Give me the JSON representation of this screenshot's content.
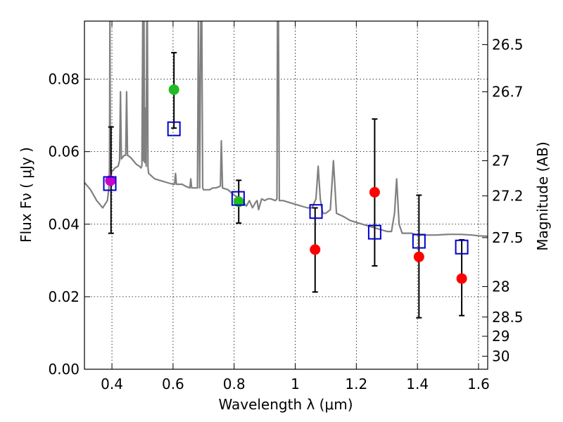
{
  "chart_data": {
    "type": "scatter",
    "xlabel": "Wavelength  λ (μm)",
    "ylabel": "Flux  Fν  ( μJy )",
    "ylabel2": "Magnitude (AB)",
    "xlim": [
      0.31,
      1.63
    ],
    "ylim": [
      0.0,
      0.096
    ],
    "grid": true,
    "xticks": [
      0.4,
      0.6,
      0.8,
      1.0,
      1.2,
      1.4,
      1.6
    ],
    "xtick_labels": [
      "0.4",
      "0.6",
      "0.8",
      "1",
      "1.2",
      "1.4",
      "1.6"
    ],
    "yticks": [
      0.0,
      0.02,
      0.04,
      0.06,
      0.08
    ],
    "ytick_labels": [
      "0.00",
      "0.02",
      "0.04",
      "0.06",
      "0.08"
    ],
    "right_ticks": [
      {
        "label": "26.5",
        "flux": 0.0895
      },
      {
        "label": "26.7",
        "flux": 0.0765
      },
      {
        "label": "27",
        "flux": 0.0575
      },
      {
        "label": "27.2",
        "flux": 0.0478
      },
      {
        "label": "27.5",
        "flux": 0.0363
      },
      {
        "label": "28",
        "flux": 0.0228
      },
      {
        "label": "28.5",
        "flux": 0.0144
      },
      {
        "label": "29",
        "flux": 0.0091
      },
      {
        "label": "30",
        "flux": 0.0036
      }
    ],
    "observed": [
      {
        "x": 0.395,
        "y": 0.052,
        "color": "#cc00cc"
      },
      {
        "x": 0.603,
        "y": 0.0771,
        "color": "#22bb22"
      },
      {
        "x": 0.815,
        "y": 0.0462,
        "color": "#22bb22"
      },
      {
        "x": 1.065,
        "y": 0.033,
        "color": "#ff0000"
      },
      {
        "x": 1.26,
        "y": 0.0488,
        "color": "#ff0000"
      },
      {
        "x": 1.405,
        "y": 0.031,
        "color": "#ff0000"
      },
      {
        "x": 1.545,
        "y": 0.025,
        "color": "#ff0000"
      }
    ],
    "errorbars": [
      {
        "x": 0.397,
        "low": 0.0375,
        "high": 0.0668
      },
      {
        "x": 0.603,
        "low": 0.0665,
        "high": 0.0873
      },
      {
        "x": 0.815,
        "low": 0.0403,
        "high": 0.0521
      },
      {
        "x": 1.065,
        "low": 0.0213,
        "high": 0.0445
      },
      {
        "x": 1.26,
        "low": 0.0285,
        "high": 0.069
      },
      {
        "x": 1.405,
        "low": 0.0142,
        "high": 0.048
      },
      {
        "x": 1.545,
        "low": 0.0148,
        "high": 0.0357
      }
    ],
    "model_points": [
      {
        "x": 0.393,
        "y": 0.0512
      },
      {
        "x": 0.603,
        "y": 0.0663
      },
      {
        "x": 0.813,
        "y": 0.0471
      },
      {
        "x": 1.068,
        "y": 0.0435
      },
      {
        "x": 1.26,
        "y": 0.0378
      },
      {
        "x": 1.405,
        "y": 0.0353
      },
      {
        "x": 1.545,
        "y": 0.0337
      }
    ],
    "spectrum": [
      [
        0.31,
        0.0515
      ],
      [
        0.33,
        0.0495
      ],
      [
        0.35,
        0.0465
      ],
      [
        0.37,
        0.0445
      ],
      [
        0.385,
        0.0465
      ],
      [
        0.39,
        0.05
      ],
      [
        0.392,
        0.0555
      ],
      [
        0.3935,
        0.098
      ],
      [
        0.395,
        0.055
      ],
      [
        0.4,
        0.0545
      ],
      [
        0.41,
        0.0555
      ],
      [
        0.42,
        0.056
      ],
      [
        0.425,
        0.0575
      ],
      [
        0.428,
        0.0765
      ],
      [
        0.431,
        0.058
      ],
      [
        0.44,
        0.059
      ],
      [
        0.445,
        0.059
      ],
      [
        0.448,
        0.0765
      ],
      [
        0.451,
        0.059
      ],
      [
        0.46,
        0.0585
      ],
      [
        0.47,
        0.0575
      ],
      [
        0.48,
        0.0565
      ],
      [
        0.49,
        0.056
      ],
      [
        0.495,
        0.0555
      ],
      [
        0.498,
        0.056
      ],
      [
        0.501,
        0.098
      ],
      [
        0.503,
        0.0575
      ],
      [
        0.505,
        0.098
      ],
      [
        0.507,
        0.057
      ],
      [
        0.51,
        0.072
      ],
      [
        0.512,
        0.056
      ],
      [
        0.514,
        0.098
      ],
      [
        0.516,
        0.098
      ],
      [
        0.518,
        0.0555
      ],
      [
        0.52,
        0.054
      ],
      [
        0.54,
        0.0525
      ],
      [
        0.56,
        0.052
      ],
      [
        0.58,
        0.0515
      ],
      [
        0.6,
        0.051
      ],
      [
        0.605,
        0.051
      ],
      [
        0.608,
        0.054
      ],
      [
        0.611,
        0.051
      ],
      [
        0.63,
        0.051
      ],
      [
        0.64,
        0.0505
      ],
      [
        0.655,
        0.05
      ],
      [
        0.658,
        0.0525
      ],
      [
        0.661,
        0.05
      ],
      [
        0.68,
        0.05
      ],
      [
        0.683,
        0.098
      ],
      [
        0.687,
        0.05
      ],
      [
        0.691,
        0.098
      ],
      [
        0.694,
        0.098
      ],
      [
        0.697,
        0.05
      ],
      [
        0.7,
        0.0495
      ],
      [
        0.72,
        0.0495
      ],
      [
        0.73,
        0.05
      ],
      [
        0.74,
        0.05
      ],
      [
        0.755,
        0.0505
      ],
      [
        0.758,
        0.063
      ],
      [
        0.762,
        0.05
      ],
      [
        0.78,
        0.0495
      ],
      [
        0.8,
        0.048
      ],
      [
        0.82,
        0.047
      ],
      [
        0.84,
        0.045
      ],
      [
        0.85,
        0.0465
      ],
      [
        0.86,
        0.0445
      ],
      [
        0.87,
        0.046
      ],
      [
        0.875,
        0.0465
      ],
      [
        0.88,
        0.044
      ],
      [
        0.89,
        0.047
      ],
      [
        0.9,
        0.0465
      ],
      [
        0.91,
        0.047
      ],
      [
        0.92,
        0.047
      ],
      [
        0.935,
        0.0465
      ],
      [
        0.94,
        0.047
      ],
      [
        0.942,
        0.098
      ],
      [
        0.945,
        0.098
      ],
      [
        0.948,
        0.0465
      ],
      [
        0.96,
        0.0465
      ],
      [
        0.98,
        0.046
      ],
      [
        1.0,
        0.0455
      ],
      [
        1.02,
        0.045
      ],
      [
        1.04,
        0.0445
      ],
      [
        1.055,
        0.0445
      ],
      [
        1.068,
        0.047
      ],
      [
        1.075,
        0.056
      ],
      [
        1.082,
        0.047
      ],
      [
        1.09,
        0.043
      ],
      [
        1.1,
        0.043
      ],
      [
        1.115,
        0.044
      ],
      [
        1.125,
        0.0575
      ],
      [
        1.135,
        0.043
      ],
      [
        1.16,
        0.042
      ],
      [
        1.18,
        0.041
      ],
      [
        1.2,
        0.0405
      ],
      [
        1.22,
        0.04
      ],
      [
        1.24,
        0.0395
      ],
      [
        1.26,
        0.039
      ],
      [
        1.28,
        0.0385
      ],
      [
        1.3,
        0.038
      ],
      [
        1.315,
        0.038
      ],
      [
        1.325,
        0.043
      ],
      [
        1.332,
        0.0525
      ],
      [
        1.34,
        0.04
      ],
      [
        1.35,
        0.0375
      ],
      [
        1.38,
        0.0375
      ],
      [
        1.4,
        0.037
      ],
      [
        1.43,
        0.037
      ],
      [
        1.46,
        0.037
      ],
      [
        1.5,
        0.0372
      ],
      [
        1.54,
        0.0372
      ],
      [
        1.58,
        0.037
      ],
      [
        1.6,
        0.0368
      ],
      [
        1.63,
        0.0367
      ]
    ],
    "colors": {
      "spectrum": "#808080",
      "model_marker": "#0000cc",
      "errorbar": "#000000",
      "grid": "#000000"
    }
  }
}
